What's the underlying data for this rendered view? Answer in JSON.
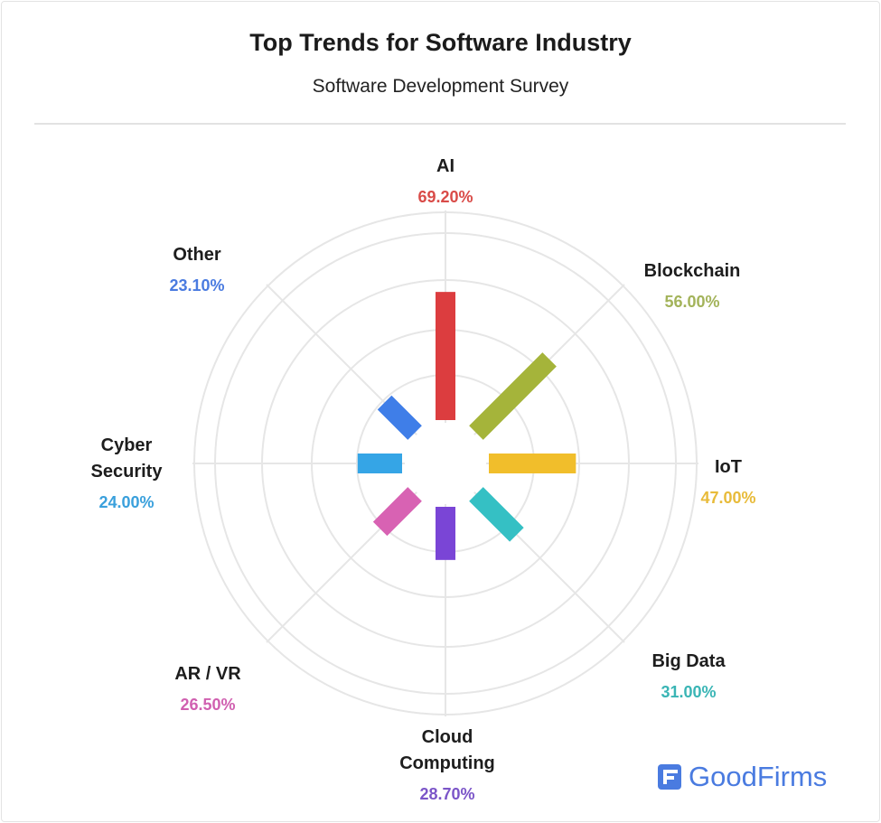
{
  "chart_data": {
    "type": "radial-bar",
    "title": "Top Trends for Software Industry",
    "subtitle": "Software Development Survey",
    "unit": "%",
    "categories": [
      "AI",
      "Blockchain",
      "IoT",
      "Big Data",
      "Cloud Computing",
      "AR / VR",
      "Cyber Security",
      "Other"
    ],
    "display_labels": [
      [
        "AI"
      ],
      [
        "Blockchain"
      ],
      [
        "IoT"
      ],
      [
        "Big Data"
      ],
      [
        "Cloud",
        "Computing"
      ],
      [
        "AR / VR"
      ],
      [
        "Cyber",
        "Security"
      ],
      [
        "Other"
      ]
    ],
    "values": [
      69.2,
      56.0,
      47.0,
      31.0,
      28.7,
      26.5,
      24.0,
      23.1
    ],
    "value_labels": [
      "69.20%",
      "56.00%",
      "47.00%",
      "31.00%",
      "28.70%",
      "26.50%",
      "24.00%",
      "23.10%"
    ],
    "colors": [
      "#dc3d3f",
      "#a5b43a",
      "#f1be2b",
      "#35c0c4",
      "#7a45d6",
      "#d862b3",
      "#35a5e6",
      "#3f7ee8"
    ],
    "value_label_colors": [
      "#d94b48",
      "#a3b35a",
      "#e8bb3a",
      "#3ab5b5",
      "#7b55c8",
      "#d060b0",
      "#3aa0dc",
      "#4a7be0"
    ],
    "grid": true
  },
  "branding": {
    "logo_text": "GoodFirms"
  }
}
